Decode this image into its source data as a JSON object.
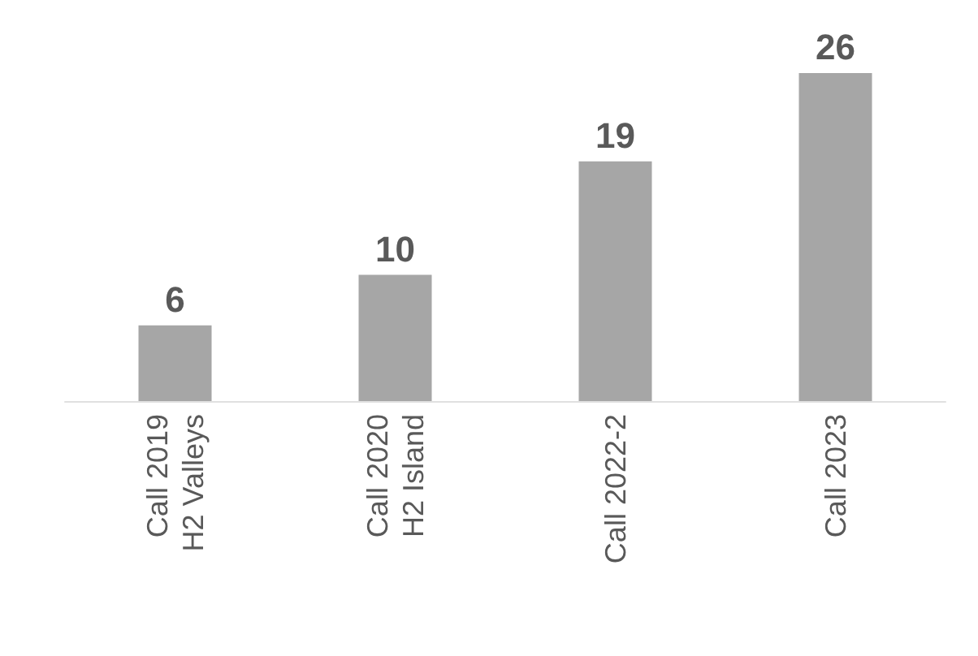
{
  "chart_data": {
    "type": "bar",
    "categories": [
      "Call 2019\nH2 Valleys",
      "Call 2020\nH2 Island",
      "Call 2022-2",
      "Call 2023"
    ],
    "values": [
      6,
      10,
      19,
      26
    ],
    "color": "#a6a6a6",
    "data_labels": true
  }
}
